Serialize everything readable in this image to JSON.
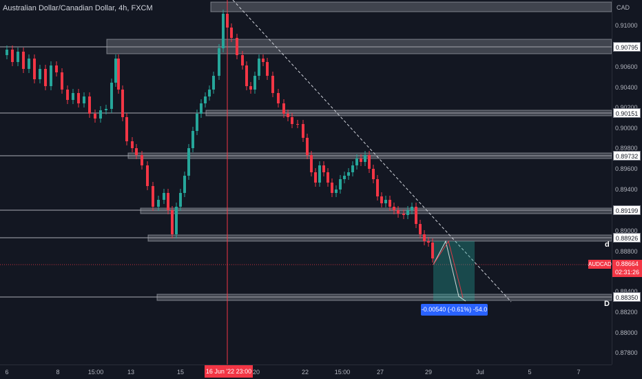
{
  "header": {
    "title": "Australian Dollar/Canadian Dollar, 4h, FXCM"
  },
  "price_axis": {
    "currency": "CAD",
    "ticks": [
      "0.91000",
      "0.90600",
      "0.90400",
      "0.90200",
      "0.90000",
      "0.89800",
      "0.89600",
      "0.89400",
      "0.89000",
      "0.88800",
      "0.88400",
      "0.88200",
      "0.88000",
      "0.87800"
    ],
    "levels": [
      "0.90795",
      "0.90151",
      "0.89732",
      "0.89199",
      "0.88926",
      "0.88350"
    ]
  },
  "time_axis": {
    "ticks": [
      "6",
      "8",
      "15:00",
      "13",
      "15",
      "20",
      "22",
      "15:00",
      "27",
      "29",
      "Jul",
      "5",
      "7"
    ],
    "cursor_label": "16 Jun '22  23:00"
  },
  "current": {
    "symbol": "AUDCAD",
    "price": "0.88664",
    "countdown": "02:31:26"
  },
  "measure": {
    "label": "-0.00540 (-0.61%) -54.0"
  },
  "points": {
    "d_small": "d",
    "d_big": "D"
  },
  "colors": {
    "up": "#26a69a",
    "down": "#f23645",
    "background": "#131722",
    "zone": "#9598a1",
    "measure": "#2962ff"
  }
}
